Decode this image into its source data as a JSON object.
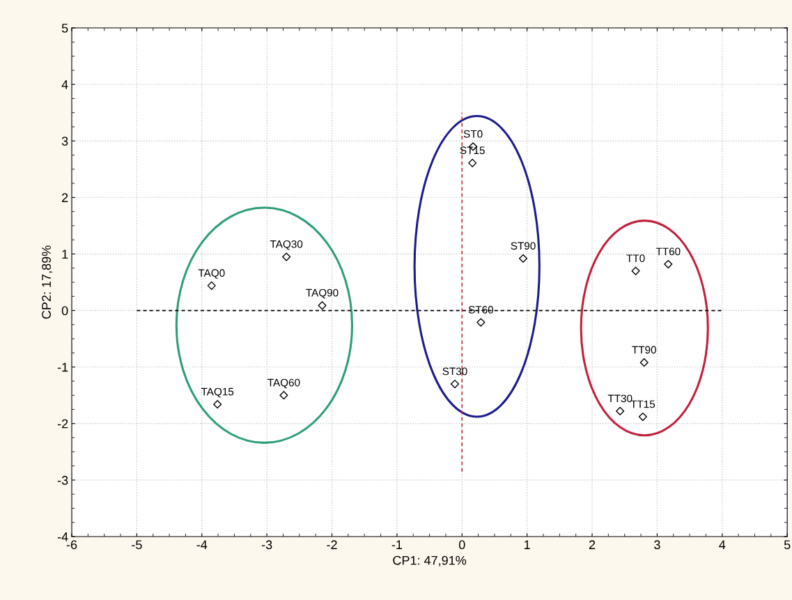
{
  "chart_data": {
    "type": "scatter",
    "xlabel": "CP1: 47,91%",
    "ylabel": "CP2: 17,89%",
    "xlim": [
      -6,
      5
    ],
    "xticks": [
      -6,
      -5,
      -4,
      -3,
      -2,
      -1,
      0,
      1,
      2,
      3,
      4,
      5
    ],
    "ylim": [
      -4,
      5
    ],
    "yticks": [
      -4,
      -3,
      -2,
      -1,
      0,
      1,
      2,
      3,
      4,
      5
    ],
    "grid": true,
    "series": [
      {
        "type": "line",
        "marker": "none",
        "line_style": "dashed",
        "color": "#000000",
        "x": [
          -5,
          4
        ],
        "values": [
          0,
          0
        ]
      },
      {
        "type": "line",
        "marker": "none",
        "line_style": "dashed",
        "color": "#c03030",
        "x": [
          0,
          0
        ],
        "values": [
          -2.85,
          3.5
        ]
      },
      {
        "marker": "diamond",
        "color": "#000000",
        "x": [
          -3.85,
          -3.76,
          -2.7,
          -2.74,
          -2.15,
          0.17,
          0.16,
          -0.11,
          0.29,
          0.94,
          2.67,
          2.78,
          2.43,
          3.17,
          2.8
        ],
        "values": [
          0.44,
          -1.66,
          0.95,
          -1.5,
          0.09,
          2.9,
          2.61,
          -1.3,
          -0.21,
          0.92,
          0.7,
          -1.88,
          -1.78,
          0.82,
          -0.92
        ],
        "value_labels": [
          "TAQ0",
          "TAQ15",
          "TAQ30",
          "TAQ60",
          "TAQ90",
          "ST0",
          "ST15",
          "ST30",
          "ST60",
          "ST90",
          "TT0",
          "TT15",
          "TT30",
          "TT60",
          "TT90"
        ]
      }
    ]
  }
}
